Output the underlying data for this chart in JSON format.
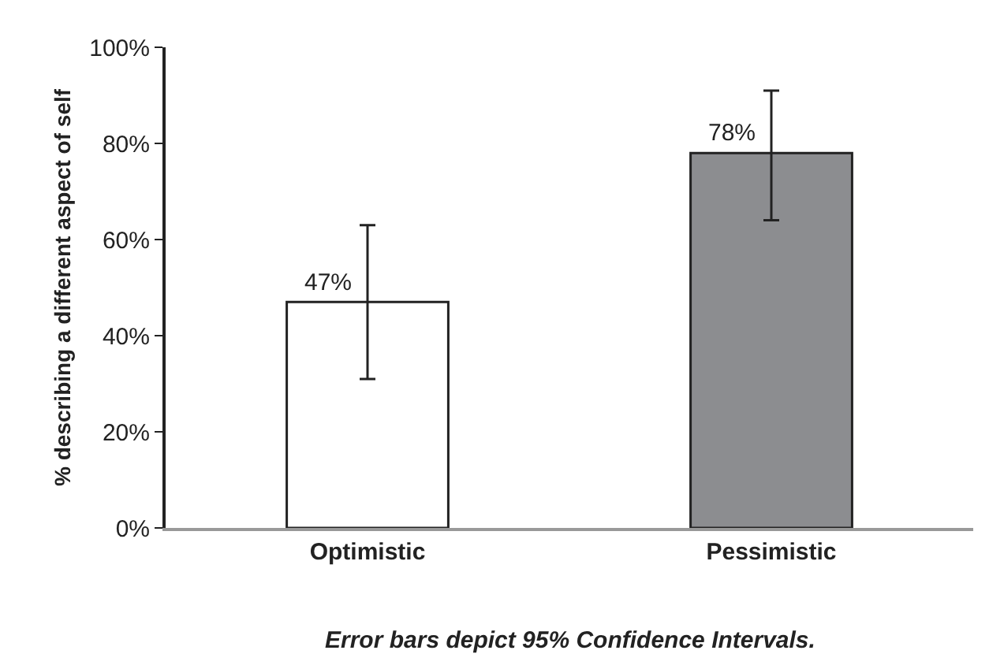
{
  "chart_data": {
    "type": "bar",
    "ylabel": "% describing a different aspect of self",
    "categories": [
      "Optimistic",
      "Pessimistic"
    ],
    "values": [
      47,
      78
    ],
    "colors": [
      "#ffffff",
      "#8c8d90"
    ],
    "errors": [
      [
        31,
        63
      ],
      [
        64,
        91
      ]
    ],
    "value_labels": [
      "47%",
      "78%"
    ],
    "ylim": [
      0,
      100
    ],
    "yticks": [
      {
        "value": 0,
        "label": "0%"
      },
      {
        "value": 20,
        "label": "20%"
      },
      {
        "value": 40,
        "label": "40%"
      },
      {
        "value": 60,
        "label": "60%"
      },
      {
        "value": 80,
        "label": "80%"
      },
      {
        "value": 100,
        "label": "100%"
      }
    ],
    "annotations": [
      "Error bars depict 95% Confidence Intervals."
    ]
  }
}
